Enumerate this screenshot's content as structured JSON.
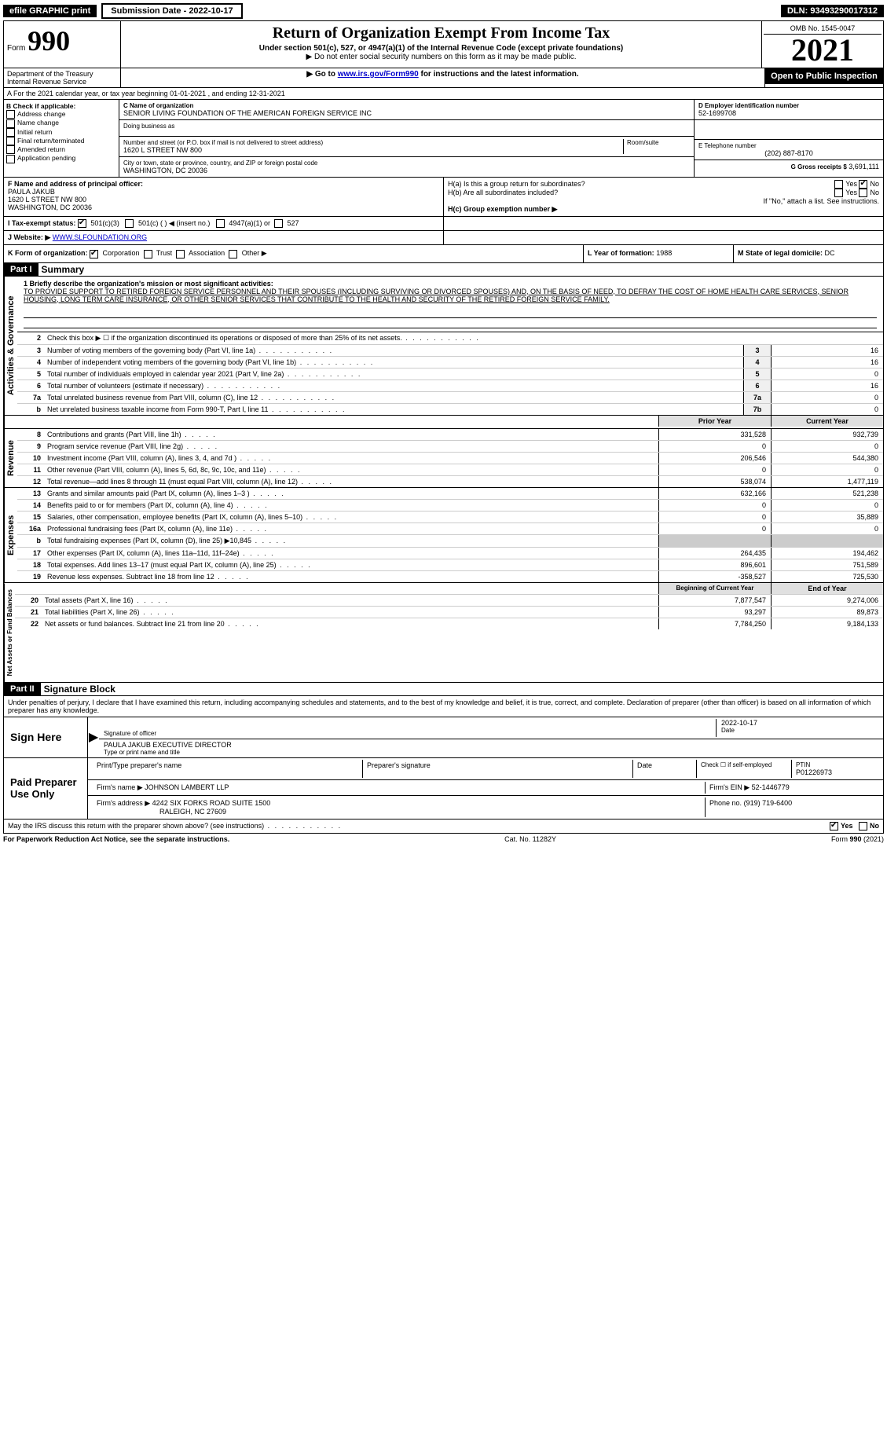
{
  "topbar": {
    "efile": "efile GRAPHIC print",
    "submission": "Submission Date - 2022-10-17",
    "dln": "DLN: 93493290017312"
  },
  "header": {
    "form_word": "Form",
    "form_num": "990",
    "title": "Return of Organization Exempt From Income Tax",
    "subtitle": "Under section 501(c), 527, or 4947(a)(1) of the Internal Revenue Code (except private foundations)",
    "note1": "▶ Do not enter social security numbers on this form as it may be made public.",
    "note2": "▶ Go to www.irs.gov/Form990 for instructions and the latest information.",
    "omb": "OMB No. 1545-0047",
    "year": "2021",
    "inspect": "Open to Public Inspection",
    "dept": "Department of the Treasury Internal Revenue Service"
  },
  "section_a": "A For the 2021 calendar year, or tax year beginning 01-01-2021    , and ending 12-31-2021",
  "box_b": {
    "hdr": "B Check if applicable:",
    "items": [
      "Address change",
      "Name change",
      "Initial return",
      "Final return/terminated",
      "Amended return",
      "Application pending"
    ]
  },
  "box_c": {
    "hdr": "C Name of organization",
    "name": "SENIOR LIVING FOUNDATION OF THE AMERICAN FOREIGN SERVICE INC",
    "dba_hdr": "Doing business as",
    "dba": "",
    "street_hdr": "Number and street (or P.O. box if mail is not delivered to street address)",
    "street": "1620 L STREET NW 800",
    "room_hdr": "Room/suite",
    "city_hdr": "City or town, state or province, country, and ZIP or foreign postal code",
    "city": "WASHINGTON, DC  20036"
  },
  "box_d": {
    "hdr": "D Employer identification number",
    "val": "52-1699708"
  },
  "box_e": {
    "hdr": "E Telephone number",
    "val": "(202) 887-8170"
  },
  "box_g": {
    "hdr": "G Gross receipts $",
    "val": "3,691,111"
  },
  "box_f": {
    "hdr": "F  Name and address of principal officer:",
    "name": "PAULA JAKUB",
    "addr1": "1620 L STREET NW 800",
    "addr2": "WASHINGTON, DC  20036"
  },
  "box_h": {
    "a_lbl": "H(a)  Is this a group return for subordinates?",
    "a_yes": "Yes",
    "a_no": "No",
    "b_lbl": "H(b)  Are all subordinates included?",
    "b_yes": "Yes",
    "b_no": "No",
    "b_note": "If \"No,\" attach a list. See instructions.",
    "c_lbl": "H(c)  Group exemption number ▶"
  },
  "box_i": {
    "hdr": "I  Tax-exempt status:",
    "opt1": "501(c)(3)",
    "opt2": "501(c) (    ) ◀ (insert no.)",
    "opt3": "4947(a)(1) or",
    "opt4": "527"
  },
  "box_j": {
    "hdr": "J  Website: ▶",
    "val": "WWW.SLFOUNDATION.ORG"
  },
  "box_k": {
    "hdr": "K Form of organization:",
    "corp": "Corporation",
    "trust": "Trust",
    "assoc": "Association",
    "other": "Other ▶"
  },
  "box_l": {
    "hdr": "L Year of formation:",
    "val": "1988"
  },
  "box_m": {
    "hdr": "M State of legal domicile:",
    "val": "DC"
  },
  "part1": {
    "num": "Part I",
    "title": "Summary"
  },
  "mission": {
    "q": "1 Briefly describe the organization's mission or most significant activities:",
    "text": "TO PROVIDE SUPPORT TO RETIRED FOREIGN SERVICE PERSONNEL AND THEIR SPOUSES (INCLUDING SURVIVING OR DIVORCED SPOUSES) AND, ON THE BASIS OF NEED, TO DEFRAY THE COST OF HOME HEALTH CARE SERVICES, SENIOR HOUSING, LONG TERM CARE INSURANCE, OR OTHER SENIOR SERVICES THAT CONTRIBUTE TO THE HEALTH AND SECURITY OF THE RETIRED FOREIGN SERVICE FAMILY."
  },
  "gov_lines": [
    {
      "n": "2",
      "d": "Check this box ▶ ☐ if the organization discontinued its operations or disposed of more than 25% of its net assets.",
      "box": "",
      "v": ""
    },
    {
      "n": "3",
      "d": "Number of voting members of the governing body (Part VI, line 1a)",
      "box": "3",
      "v": "16"
    },
    {
      "n": "4",
      "d": "Number of independent voting members of the governing body (Part VI, line 1b)",
      "box": "4",
      "v": "16"
    },
    {
      "n": "5",
      "d": "Total number of individuals employed in calendar year 2021 (Part V, line 2a)",
      "box": "5",
      "v": "0"
    },
    {
      "n": "6",
      "d": "Total number of volunteers (estimate if necessary)",
      "box": "6",
      "v": "16"
    },
    {
      "n": "7a",
      "d": "Total unrelated business revenue from Part VIII, column (C), line 12",
      "box": "7a",
      "v": "0"
    },
    {
      "n": "b",
      "d": "Net unrelated business taxable income from Form 990-T, Part I, line 11",
      "box": "7b",
      "v": "0"
    }
  ],
  "col_hdrs": {
    "prior": "Prior Year",
    "current": "Current Year"
  },
  "rev_lines": [
    {
      "n": "8",
      "d": "Contributions and grants (Part VIII, line 1h)",
      "p": "331,528",
      "c": "932,739"
    },
    {
      "n": "9",
      "d": "Program service revenue (Part VIII, line 2g)",
      "p": "0",
      "c": "0"
    },
    {
      "n": "10",
      "d": "Investment income (Part VIII, column (A), lines 3, 4, and 7d )",
      "p": "206,546",
      "c": "544,380"
    },
    {
      "n": "11",
      "d": "Other revenue (Part VIII, column (A), lines 5, 6d, 8c, 9c, 10c, and 11e)",
      "p": "0",
      "c": "0"
    },
    {
      "n": "12",
      "d": "Total revenue—add lines 8 through 11 (must equal Part VIII, column (A), line 12)",
      "p": "538,074",
      "c": "1,477,119"
    }
  ],
  "exp_lines": [
    {
      "n": "13",
      "d": "Grants and similar amounts paid (Part IX, column (A), lines 1–3 )",
      "p": "632,166",
      "c": "521,238"
    },
    {
      "n": "14",
      "d": "Benefits paid to or for members (Part IX, column (A), line 4)",
      "p": "0",
      "c": "0"
    },
    {
      "n": "15",
      "d": "Salaries, other compensation, employee benefits (Part IX, column (A), lines 5–10)",
      "p": "0",
      "c": "35,889"
    },
    {
      "n": "16a",
      "d": "Professional fundraising fees (Part IX, column (A), line 11e)",
      "p": "0",
      "c": "0"
    },
    {
      "n": "b",
      "d": "Total fundraising expenses (Part IX, column (D), line 25) ▶10,845",
      "p": "",
      "c": "",
      "gray": true
    },
    {
      "n": "17",
      "d": "Other expenses (Part IX, column (A), lines 11a–11d, 11f–24e)",
      "p": "264,435",
      "c": "194,462"
    },
    {
      "n": "18",
      "d": "Total expenses. Add lines 13–17 (must equal Part IX, column (A), line 25)",
      "p": "896,601",
      "c": "751,589"
    },
    {
      "n": "19",
      "d": "Revenue less expenses. Subtract line 18 from line 12",
      "p": "-358,527",
      "c": "725,530"
    }
  ],
  "na_hdrs": {
    "beg": "Beginning of Current Year",
    "end": "End of Year"
  },
  "na_lines": [
    {
      "n": "20",
      "d": "Total assets (Part X, line 16)",
      "p": "7,877,547",
      "c": "9,274,006"
    },
    {
      "n": "21",
      "d": "Total liabilities (Part X, line 26)",
      "p": "93,297",
      "c": "89,873"
    },
    {
      "n": "22",
      "d": "Net assets or fund balances. Subtract line 21 from line 20",
      "p": "7,784,250",
      "c": "9,184,133"
    }
  ],
  "part2": {
    "num": "Part II",
    "title": "Signature Block"
  },
  "perjury": "Under penalties of perjury, I declare that I have examined this return, including accompanying schedules and statements, and to the best of my knowledge and belief, it is true, correct, and complete. Declaration of preparer (other than officer) is based on all information of which preparer has any knowledge.",
  "sign": {
    "here": "Sign Here",
    "sig_lbl": "Signature of officer",
    "date_lbl": "Date",
    "date": "2022-10-17",
    "name": "PAULA JAKUB  EXECUTIVE DIRECTOR",
    "name_lbl": "Type or print name and title"
  },
  "paid": {
    "lbl": "Paid Preparer Use Only",
    "h1": "Print/Type preparer's name",
    "h2": "Preparer's signature",
    "h3": "Date",
    "h4": "Check ☐ if self-employed",
    "h5_lbl": "PTIN",
    "h5": "P01226973",
    "firm_lbl": "Firm's name    ▶",
    "firm": "JOHNSON LAMBERT LLP",
    "ein_lbl": "Firm's EIN ▶",
    "ein": "52-1446779",
    "addr_lbl": "Firm's address ▶",
    "addr1": "4242 SIX FORKS ROAD SUITE 1500",
    "addr2": "RALEIGH, NC  27609",
    "phone_lbl": "Phone no.",
    "phone": "(919) 719-6400"
  },
  "discuss": {
    "q": "May the IRS discuss this return with the preparer shown above? (see instructions)",
    "yes": "Yes",
    "no": "No"
  },
  "footer": {
    "pra": "For Paperwork Reduction Act Notice, see the separate instructions.",
    "cat": "Cat. No. 11282Y",
    "form": "Form 990 (2021)"
  },
  "vtabs": {
    "gov": "Activities & Governance",
    "rev": "Revenue",
    "exp": "Expenses",
    "na": "Net Assets or Fund Balances"
  }
}
